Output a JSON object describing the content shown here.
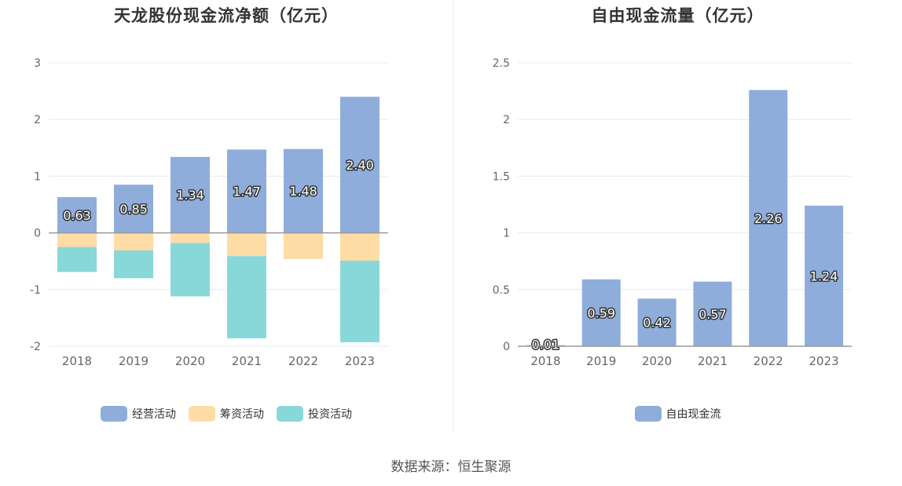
{
  "source": "数据来源：恒生聚源",
  "chart_data": [
    {
      "type": "bar",
      "title": "天龙股份现金流净额（亿元）",
      "categories": [
        "2018",
        "2019",
        "2020",
        "2021",
        "2022",
        "2023"
      ],
      "series": [
        {
          "name": "经营活动",
          "color": "#8fadda",
          "values": [
            0.63,
            0.85,
            1.34,
            1.47,
            1.48,
            2.4
          ],
          "labels": [
            "0.63",
            "0.85",
            "1.34",
            "1.47",
            "1.48",
            "2.40"
          ]
        },
        {
          "name": "筹资活动",
          "color": "#fddca5",
          "values": [
            -0.25,
            -0.31,
            -0.18,
            -0.41,
            -0.46,
            -0.49
          ]
        },
        {
          "name": "投资活动",
          "color": "#88d8da",
          "values": [
            -0.44,
            -0.49,
            -0.94,
            -1.45,
            0.0,
            -1.44
          ]
        }
      ],
      "stacked": true,
      "ylim": [
        -2,
        3
      ],
      "yticks": [
        "3",
        "2",
        "1",
        "0",
        "-1",
        "-2"
      ],
      "grid": true,
      "legend": "bottom"
    },
    {
      "type": "bar",
      "title": "自由现金流量（亿元）",
      "categories": [
        "2018",
        "2019",
        "2020",
        "2021",
        "2022",
        "2023"
      ],
      "series": [
        {
          "name": "自由现金流",
          "color": "#8fadda",
          "values": [
            0.01,
            0.59,
            0.42,
            0.57,
            2.26,
            1.24
          ],
          "labels": [
            "0.01",
            "0.59",
            "0.42",
            "0.57",
            "2.26",
            "1.24"
          ]
        }
      ],
      "ylim": [
        0,
        2.5
      ],
      "yticks": [
        "2.5",
        "2",
        "1.5",
        "1",
        "0.5",
        "0"
      ],
      "grid": true,
      "legend": "bottom"
    }
  ]
}
